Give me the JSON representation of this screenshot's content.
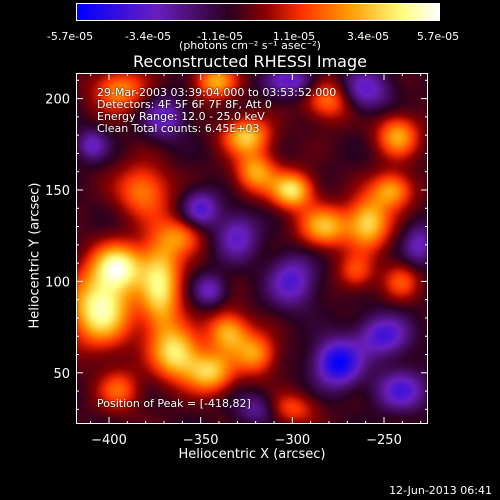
{
  "colorbar": {
    "tick_labels": [
      "-5.7e-05",
      "-3.4e-05",
      "-1.1e-05",
      "1.1e-05",
      "3.4e-05",
      "5.7e-05"
    ],
    "units": "(photons cm⁻² s⁻¹ asec⁻²)",
    "range": [
      -5.7e-05,
      5.7e-05
    ],
    "colormap": [
      "#0000ff",
      "#6a1fbf",
      "#2a0020",
      "#8b0000",
      "#ff3000",
      "#ff9a00",
      "#ffff80",
      "#ffffff"
    ]
  },
  "info": {
    "line1": "29-Mar-2003 03:39:04.000 to 03:53:52.000",
    "line2": "Detectors: 4F 5F 6F 7F 8F, Att 0",
    "line3": "Energy Range: 12.0 - 25.0 keV",
    "line4": "Clean     Total counts: 6.45E+03"
  },
  "peak_label": "Position of Peak = [-418,82]",
  "timestamp": "12-Jun-2013 06:41",
  "chart_data": {
    "type": "heatmap",
    "title": "Reconstructed RHESSI Image",
    "xlabel": "Heliocentric X (arcsec)",
    "ylabel": "Heliocentric Y (arcsec)",
    "xlim": [
      -418,
      -226
    ],
    "ylim": [
      22,
      214
    ],
    "xticks": [
      -400,
      -350,
      -300,
      -250
    ],
    "yticks": [
      50,
      100,
      150,
      200
    ],
    "grid": false,
    "peak": [
      -418,
      82
    ],
    "blobs": [
      {
        "x": -405,
        "y": 85,
        "sx": 12,
        "sy": 14,
        "amp": 1.0
      },
      {
        "x": -395,
        "y": 108,
        "sx": 10,
        "sy": 9,
        "amp": 0.9
      },
      {
        "x": -372,
        "y": 98,
        "sx": 8,
        "sy": 20,
        "amp": 0.85
      },
      {
        "x": -382,
        "y": 150,
        "sx": 10,
        "sy": 10,
        "amp": 0.55
      },
      {
        "x": -363,
        "y": 60,
        "sx": 9,
        "sy": 10,
        "amp": 0.8
      },
      {
        "x": -345,
        "y": 50,
        "sx": 9,
        "sy": 8,
        "amp": 0.75
      },
      {
        "x": -335,
        "y": 72,
        "sx": 8,
        "sy": 8,
        "amp": 0.7
      },
      {
        "x": -320,
        "y": 60,
        "sx": 8,
        "sy": 8,
        "amp": 0.6
      },
      {
        "x": -325,
        "y": 180,
        "sx": 9,
        "sy": 7,
        "amp": 0.75
      },
      {
        "x": -320,
        "y": 160,
        "sx": 8,
        "sy": 8,
        "amp": 0.65
      },
      {
        "x": -300,
        "y": 150,
        "sx": 8,
        "sy": 7,
        "amp": 0.85
      },
      {
        "x": -282,
        "y": 130,
        "sx": 10,
        "sy": 8,
        "amp": 0.7
      },
      {
        "x": -258,
        "y": 132,
        "sx": 8,
        "sy": 10,
        "amp": 0.8
      },
      {
        "x": -245,
        "y": 150,
        "sx": 8,
        "sy": 7,
        "amp": 0.65
      },
      {
        "x": -242,
        "y": 180,
        "sx": 8,
        "sy": 8,
        "amp": 0.65
      },
      {
        "x": -342,
        "y": 210,
        "sx": 8,
        "sy": 7,
        "amp": 0.65
      },
      {
        "x": -395,
        "y": 205,
        "sx": 10,
        "sy": 8,
        "amp": 0.6
      },
      {
        "x": -280,
        "y": 200,
        "sx": 9,
        "sy": 8,
        "amp": 0.55
      },
      {
        "x": -360,
        "y": 125,
        "sx": 8,
        "sy": 7,
        "amp": 0.45
      },
      {
        "x": -265,
        "y": 105,
        "sx": 7,
        "sy": 7,
        "amp": 0.4
      },
      {
        "x": -240,
        "y": 100,
        "sx": 7,
        "sy": 7,
        "amp": 0.4
      },
      {
        "x": -395,
        "y": 40,
        "sx": 8,
        "sy": 8,
        "amp": 0.45
      },
      {
        "x": -300,
        "y": 30,
        "sx": 9,
        "sy": 6,
        "amp": 0.4
      },
      {
        "x": -350,
        "y": 140,
        "sx": 7,
        "sy": 7,
        "amp": -0.55
      },
      {
        "x": -330,
        "y": 125,
        "sx": 8,
        "sy": 9,
        "amp": -0.5
      },
      {
        "x": -300,
        "y": 100,
        "sx": 9,
        "sy": 10,
        "amp": -0.55
      },
      {
        "x": -275,
        "y": 55,
        "sx": 9,
        "sy": 9,
        "amp": -0.85
      },
      {
        "x": -250,
        "y": 70,
        "sx": 10,
        "sy": 8,
        "amp": -0.6
      },
      {
        "x": -240,
        "y": 40,
        "sx": 10,
        "sy": 8,
        "amp": -0.55
      },
      {
        "x": -370,
        "y": 190,
        "sx": 8,
        "sy": 8,
        "amp": -0.5
      },
      {
        "x": -300,
        "y": 210,
        "sx": 10,
        "sy": 6,
        "amp": -0.5
      },
      {
        "x": -260,
        "y": 205,
        "sx": 10,
        "sy": 8,
        "amp": -0.5
      },
      {
        "x": -345,
        "y": 95,
        "sx": 6,
        "sy": 6,
        "amp": -0.45
      },
      {
        "x": -230,
        "y": 120,
        "sx": 6,
        "sy": 8,
        "amp": -0.45
      },
      {
        "x": -410,
        "y": 175,
        "sx": 6,
        "sy": 6,
        "amp": -0.45
      },
      {
        "x": -320,
        "y": 30,
        "sx": 8,
        "sy": 6,
        "amp": -0.35
      }
    ]
  }
}
